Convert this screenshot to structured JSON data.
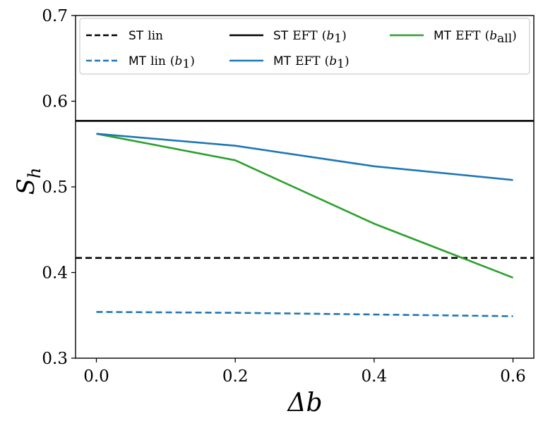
{
  "chart_data": {
    "type": "line",
    "title": "",
    "xlabel": "Δb",
    "ylabel": {
      "main": "S",
      "sub": "h"
    },
    "xlim": [
      -0.03,
      0.63
    ],
    "ylim": [
      0.3,
      0.7
    ],
    "grid": false,
    "legend_position": "top",
    "xticks": [
      {
        "value": 0.0,
        "label": "0.0"
      },
      {
        "value": 0.2,
        "label": "0.2"
      },
      {
        "value": 0.4,
        "label": "0.4"
      },
      {
        "value": 0.6,
        "label": "0.6"
      }
    ],
    "yticks": [
      {
        "value": 0.3,
        "label": "0.3"
      },
      {
        "value": 0.4,
        "label": "0.4"
      },
      {
        "value": 0.5,
        "label": "0.5"
      },
      {
        "value": 0.6,
        "label": "0.6"
      },
      {
        "value": 0.7,
        "label": "0.7"
      }
    ],
    "series": [
      {
        "id": "st-lin",
        "kind": "hline",
        "value": 0.417,
        "color": "#000000",
        "dashed": true,
        "legend": {
          "model": "ST",
          "text": "lin",
          "arg": "",
          "sub": ""
        }
      },
      {
        "id": "st-eft-b1",
        "kind": "hline",
        "value": 0.577,
        "color": "#000000",
        "dashed": false,
        "legend": {
          "model": "ST",
          "text": "EFT",
          "arg": "b",
          "sub": "1"
        }
      },
      {
        "id": "mt-eft-ball",
        "kind": "line",
        "x": [
          0.0,
          0.2,
          0.4,
          0.6
        ],
        "y": [
          0.562,
          0.531,
          0.457,
          0.394
        ],
        "color": "#2ca02c",
        "dashed": false,
        "legend": {
          "model": "MT",
          "text": "EFT",
          "arg": "b",
          "sub": "all"
        }
      },
      {
        "id": "mt-lin-b1",
        "kind": "line",
        "x": [
          0.0,
          0.2,
          0.4,
          0.6
        ],
        "y": [
          0.354,
          0.353,
          0.351,
          0.349
        ],
        "color": "#1f77b4",
        "dashed": true,
        "legend": {
          "model": "MT",
          "text": "lin",
          "arg": "b",
          "sub": "1"
        }
      },
      {
        "id": "mt-eft-b1",
        "kind": "line",
        "x": [
          0.0,
          0.2,
          0.4,
          0.6
        ],
        "y": [
          0.562,
          0.548,
          0.524,
          0.508
        ],
        "color": "#1f77b4",
        "dashed": false,
        "legend": {
          "model": "MT",
          "text": "EFT",
          "arg": "b",
          "sub": "1"
        }
      }
    ]
  }
}
